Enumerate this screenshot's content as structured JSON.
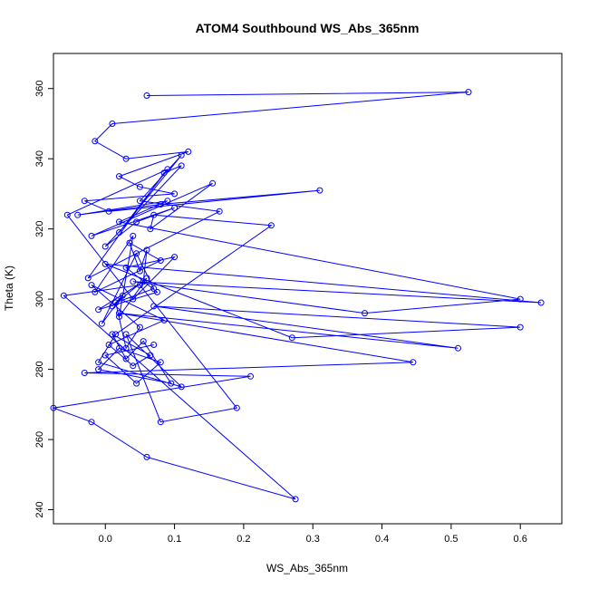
{
  "chart_data": {
    "type": "line",
    "title": "ATOM4 Southbound WS_Abs_365nm",
    "xlabel": "WS_Abs_365nm",
    "ylabel": "Theta (K)",
    "xlim": [
      -0.075,
      0.66
    ],
    "ylim": [
      236,
      370
    ],
    "xticks": [
      0.0,
      0.1,
      0.2,
      0.3,
      0.4,
      0.5,
      0.6
    ],
    "xtick_labels": [
      "0.0",
      "0.1",
      "0.2",
      "0.3",
      "0.4",
      "0.5",
      "0.6"
    ],
    "yticks": [
      240,
      260,
      280,
      300,
      320,
      340,
      360
    ],
    "ytick_labels": [
      "240",
      "260",
      "280",
      "300",
      "320",
      "340",
      "360"
    ],
    "grid": false,
    "series": [
      {
        "color": "#0000ff",
        "marker": "open-circle",
        "x": [
          0.06,
          0.525,
          0.01,
          -0.015,
          0.03,
          0.12,
          0.02,
          0.05,
          0.1,
          -0.03,
          0.005,
          0.31,
          0.08,
          -0.04,
          0.09,
          0.02,
          0.6,
          0.375,
          0.04,
          0.63,
          0.0,
          0.27,
          0.6,
          0.07,
          0.51,
          0.02,
          0.445,
          -0.03,
          0.21,
          -0.075,
          -0.02,
          0.06,
          0.275,
          -0.06,
          0.05,
          0.19,
          0.08,
          0.03,
          0.11,
          -0.01,
          0.015,
          0.24,
          0.07,
          0.065,
          0.155,
          -0.02,
          0.1,
          0.045,
          0.0,
          0.11,
          0.085,
          -0.025,
          0.165,
          0.05,
          0.11,
          0.02,
          0.09,
          -0.055,
          0.04,
          0.1,
          0.03,
          0.075,
          -0.01,
          0.055,
          0.06,
          0.05,
          0.035,
          0.08,
          -0.015,
          0.04,
          0.02,
          0.06,
          0.01,
          0.025,
          -0.005,
          0.045,
          0.07,
          0.015,
          0.03,
          0.05,
          -0.02,
          0.085,
          0.005,
          0.04,
          0.065,
          0.01,
          0.03,
          0.055,
          0.095,
          -0.01,
          0.02,
          0.08,
          0.045,
          0.0,
          0.07
        ],
        "y": [
          358,
          359,
          350,
          345,
          340,
          342,
          335,
          332,
          330,
          328,
          325,
          331,
          327,
          324,
          328,
          322,
          300,
          296,
          305,
          299,
          310,
          289,
          292,
          298,
          286,
          296,
          282,
          279,
          278,
          269,
          265,
          255,
          243,
          301,
          304,
          269,
          265,
          290,
          275,
          282,
          290,
          321,
          324,
          320,
          333,
          318,
          326,
          322,
          315,
          338,
          336,
          306,
          325,
          328,
          341,
          319,
          337,
          324,
          300,
          312,
          309,
          302,
          297,
          305,
          314,
          308,
          316,
          311,
          302,
          318,
          295,
          306,
          298,
          301,
          293,
          313,
          303,
          299,
          286,
          292,
          304,
          294,
          287,
          281,
          284,
          290,
          283,
          288,
          276,
          280,
          286,
          282,
          276,
          284,
          287
        ]
      }
    ]
  }
}
